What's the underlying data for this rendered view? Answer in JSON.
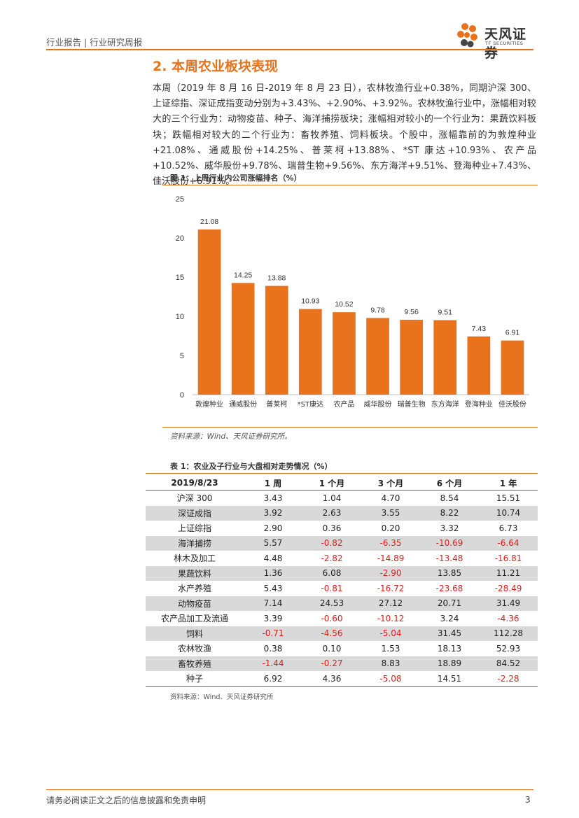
{
  "header": {
    "left_text": "行业报告 | 行业研究周报",
    "logo_cn": "天风证券",
    "logo_en": "TF SECURITIES",
    "accent_color": "#e8731c"
  },
  "section": {
    "title": "2. 本周农业板块表现",
    "paragraph": "本周（2019 年 8 月 16 日-2019 年 8 月 23 日），农林牧渔行业+0.38%，同期沪深 300、上证综指、深证成指变动分别为+3.43%、+2.90%、+3.92%。农林牧渔行业中，涨幅相对较大的三个行业为：动物疫苗、种子、海洋捕捞板块；涨幅相对较小的一个行业为：果蔬饮料板块；跌幅相对较大的二个行业为：畜牧养殖、饲料板块。个股中，涨幅靠前的为敦煌种业+21.08%、通威股份+14.25%、普莱柯+13.88%、*ST 康达+10.93%、农产品+10.52%、威华股份+9.78%、瑞普生物+9.56%、东方海洋+9.51%、登海种业+7.43%、佳沃股份+6.91%。"
  },
  "figure": {
    "title": "图 1：上周行业内公司涨幅排名（%）",
    "source": "资料来源：Wind、天风证券研究所。"
  },
  "chart_data": {
    "type": "bar",
    "title": "上周行业内公司涨幅排名（%）",
    "categories": [
      "敦煌种业",
      "通威股份",
      "普莱柯",
      "*ST康达",
      "农产品",
      "威华股份",
      "瑞普生物",
      "东方海洋",
      "登海种业",
      "佳沃股份"
    ],
    "values": [
      21.08,
      14.25,
      13.88,
      10.93,
      10.52,
      9.78,
      9.56,
      9.51,
      7.43,
      6.91
    ],
    "value_labels": [
      "21.08",
      "14.25",
      "13.88",
      "10.93",
      "10.52",
      "9.78",
      "9.56",
      "9.51",
      "7.43",
      "6.91"
    ],
    "yticks": [
      "0",
      "5",
      "10",
      "15",
      "20",
      "25"
    ],
    "ylim": [
      0,
      25
    ],
    "bar_color": "#e8731c",
    "xlabel": "",
    "ylabel": ""
  },
  "table": {
    "title": "表 1：农业及子行业与大盘相对走势情况（%）",
    "headers": [
      "2019/8/23",
      "1 周",
      "1 个月",
      "3 个月",
      "6 个月",
      "1 年"
    ],
    "rows": [
      [
        "沪深 300",
        "3.43",
        "1.04",
        "4.70",
        "8.54",
        "15.51"
      ],
      [
        "深证成指",
        "3.92",
        "2.63",
        "3.55",
        "8.22",
        "10.74"
      ],
      [
        "上证综指",
        "2.90",
        "0.36",
        "0.20",
        "3.32",
        "6.73"
      ],
      [
        "海洋捕捞",
        "5.57",
        "-0.82",
        "-6.35",
        "-10.69",
        "-6.64"
      ],
      [
        "林木及加工",
        "4.48",
        "-2.82",
        "-14.89",
        "-13.48",
        "-16.81"
      ],
      [
        "果蔬饮料",
        "1.36",
        "6.08",
        "-2.90",
        "13.85",
        "11.21"
      ],
      [
        "水产养殖",
        "5.43",
        "-0.81",
        "-16.72",
        "-23.68",
        "-28.49"
      ],
      [
        "动物疫苗",
        "7.14",
        "24.53",
        "27.12",
        "20.71",
        "31.49"
      ],
      [
        "农产品加工及流通",
        "3.39",
        "-0.60",
        "-10.12",
        "3.24",
        "-4.36"
      ],
      [
        "饲料",
        "-0.71",
        "-4.56",
        "-5.04",
        "31.45",
        "112.28"
      ],
      [
        "农林牧渔",
        "0.38",
        "0.10",
        "1.53",
        "18.13",
        "52.93"
      ],
      [
        "畜牧养殖",
        "-1.44",
        "-0.27",
        "8.83",
        "18.89",
        "84.52"
      ],
      [
        "种子",
        "6.92",
        "4.36",
        "-5.08",
        "14.51",
        "-2.28"
      ]
    ],
    "source": "资料来源：Wind、天风证券研究所",
    "negative_color": "#e01b1b"
  },
  "footer": {
    "disclaimer": "请务必阅读正文之后的信息披露和免责申明",
    "page_number": "3"
  }
}
